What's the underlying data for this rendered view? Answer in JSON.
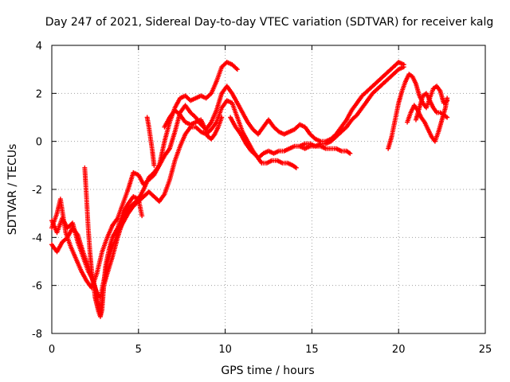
{
  "chart_data": {
    "type": "scatter",
    "title": "Day 247 of 2021, Sidereal Day-to-day VTEC variation (SDTVAR) for receiver kalg",
    "xlabel": "GPS time / hours",
    "ylabel": "SDTVAR / TECUs",
    "xlim": [
      0,
      25
    ],
    "ylim": [
      -8,
      4
    ],
    "x_ticks": [
      0,
      5,
      10,
      15,
      20,
      25
    ],
    "y_ticks": [
      -8,
      -6,
      -4,
      -2,
      0,
      2,
      4
    ],
    "x_tick_labels": [
      "0",
      "5",
      "10",
      "15",
      "20",
      "25"
    ],
    "y_tick_labels": [
      "-8",
      "-6",
      "-4",
      "-2",
      "0",
      "2",
      "4"
    ],
    "grid": true,
    "marker": "+",
    "color": "#ff0000",
    "series": [
      {
        "points": [
          [
            0.0,
            -3.3
          ],
          [
            0.3,
            -3.8
          ],
          [
            0.6,
            -3.2
          ],
          [
            0.9,
            -3.6
          ],
          [
            1.2,
            -3.4
          ],
          [
            1.5,
            -4.2
          ],
          [
            1.8,
            -4.8
          ],
          [
            2.1,
            -5.4
          ],
          [
            2.4,
            -5.8
          ],
          [
            2.6,
            -6.4
          ],
          [
            2.8,
            -7.2
          ],
          [
            3.0,
            -6.0
          ],
          [
            3.2,
            -5.5
          ],
          [
            3.5,
            -4.8
          ],
          [
            3.8,
            -4.0
          ],
          [
            4.1,
            -3.3
          ],
          [
            4.4,
            -2.8
          ],
          [
            4.7,
            -2.6
          ],
          [
            5.0,
            -2.4
          ],
          [
            5.3,
            -2.0
          ],
          [
            5.6,
            -1.5
          ],
          [
            5.9,
            -1.3
          ],
          [
            6.2,
            -1.0
          ],
          [
            6.5,
            -0.6
          ],
          [
            6.8,
            -0.3
          ],
          [
            7.1,
            0.4
          ],
          [
            7.4,
            1.2
          ],
          [
            7.7,
            1.5
          ],
          [
            8.0,
            1.2
          ],
          [
            8.3,
            1.0
          ],
          [
            8.6,
            0.7
          ],
          [
            8.9,
            0.5
          ],
          [
            9.2,
            0.8
          ],
          [
            9.5,
            1.3
          ],
          [
            9.8,
            2.0
          ],
          [
            10.1,
            2.3
          ],
          [
            10.4,
            2.0
          ],
          [
            10.7,
            1.6
          ],
          [
            11.0,
            1.2
          ],
          [
            11.3,
            0.8
          ],
          [
            11.6,
            0.5
          ],
          [
            11.9,
            0.3
          ],
          [
            12.2,
            0.6
          ],
          [
            12.5,
            0.9
          ],
          [
            12.8,
            0.6
          ],
          [
            13.1,
            0.4
          ],
          [
            13.4,
            0.3
          ],
          [
            13.7,
            0.4
          ],
          [
            14.0,
            0.5
          ],
          [
            14.3,
            0.7
          ],
          [
            14.6,
            0.6
          ],
          [
            14.9,
            0.3
          ],
          [
            15.2,
            0.1
          ],
          [
            15.5,
            0.0
          ],
          [
            15.8,
            0.0
          ],
          [
            16.1,
            0.1
          ],
          [
            16.4,
            0.3
          ],
          [
            16.7,
            0.6
          ],
          [
            17.0,
            0.9
          ],
          [
            17.3,
            1.3
          ],
          [
            17.6,
            1.6
          ],
          [
            17.9,
            1.9
          ],
          [
            18.2,
            2.1
          ],
          [
            18.5,
            2.3
          ],
          [
            18.8,
            2.5
          ],
          [
            19.1,
            2.7
          ],
          [
            19.4,
            2.9
          ],
          [
            19.7,
            3.1
          ],
          [
            20.0,
            3.3
          ],
          [
            20.3,
            3.2
          ]
        ]
      },
      {
        "points": [
          [
            0.0,
            -4.3
          ],
          [
            0.3,
            -4.6
          ],
          [
            0.6,
            -4.2
          ],
          [
            0.9,
            -4.0
          ],
          [
            1.2,
            -3.6
          ],
          [
            1.5,
            -3.9
          ],
          [
            1.8,
            -4.6
          ],
          [
            2.1,
            -5.2
          ],
          [
            2.4,
            -5.9
          ],
          [
            2.6,
            -6.3
          ],
          [
            2.8,
            -6.5
          ],
          [
            3.0,
            -5.8
          ],
          [
            3.2,
            -5.0
          ],
          [
            3.5,
            -4.4
          ],
          [
            3.8,
            -3.8
          ],
          [
            4.1,
            -3.4
          ],
          [
            4.4,
            -3.0
          ],
          [
            4.7,
            -2.7
          ],
          [
            5.0,
            -2.5
          ],
          [
            5.3,
            -2.3
          ],
          [
            5.6,
            -2.1
          ],
          [
            5.9,
            -2.3
          ],
          [
            6.2,
            -2.5
          ],
          [
            6.5,
            -2.2
          ],
          [
            6.8,
            -1.6
          ],
          [
            7.1,
            -0.8
          ],
          [
            7.4,
            -0.2
          ],
          [
            7.7,
            0.3
          ],
          [
            8.0,
            0.6
          ],
          [
            8.3,
            0.6
          ],
          [
            8.6,
            0.4
          ],
          [
            8.9,
            0.3
          ],
          [
            9.2,
            0.5
          ],
          [
            9.5,
            0.8
          ],
          [
            9.8,
            1.4
          ],
          [
            10.1,
            1.7
          ],
          [
            10.4,
            1.6
          ],
          [
            10.7,
            1.0
          ],
          [
            11.0,
            0.4
          ],
          [
            11.3,
            0.0
          ],
          [
            11.6,
            -0.4
          ],
          [
            11.9,
            -0.7
          ],
          [
            12.2,
            -0.5
          ],
          [
            12.5,
            -0.4
          ],
          [
            12.8,
            -0.5
          ],
          [
            13.1,
            -0.4
          ],
          [
            13.4,
            -0.4
          ],
          [
            13.7,
            -0.3
          ],
          [
            14.0,
            -0.2
          ],
          [
            14.3,
            -0.2
          ],
          [
            14.6,
            -0.3
          ],
          [
            14.9,
            -0.2
          ],
          [
            15.2,
            -0.2
          ],
          [
            15.5,
            -0.1
          ],
          [
            15.8,
            -0.1
          ],
          [
            16.1,
            0.0
          ],
          [
            16.4,
            0.2
          ],
          [
            16.7,
            0.4
          ],
          [
            17.0,
            0.6
          ],
          [
            17.3,
            0.9
          ],
          [
            17.6,
            1.1
          ],
          [
            17.9,
            1.4
          ],
          [
            18.2,
            1.7
          ],
          [
            18.5,
            2.0
          ],
          [
            18.8,
            2.2
          ],
          [
            19.1,
            2.4
          ],
          [
            19.4,
            2.6
          ],
          [
            19.7,
            2.8
          ],
          [
            20.0,
            3.0
          ],
          [
            20.3,
            3.1
          ]
        ]
      },
      {
        "points": [
          [
            0.0,
            -3.6
          ],
          [
            0.3,
            -3.0
          ],
          [
            0.5,
            -2.4
          ],
          [
            0.8,
            -3.8
          ],
          [
            1.1,
            -4.4
          ],
          [
            1.4,
            -4.9
          ],
          [
            1.7,
            -5.4
          ],
          [
            2.0,
            -5.8
          ],
          [
            2.3,
            -6.1
          ],
          [
            2.6,
            -5.5
          ],
          [
            2.9,
            -4.6
          ],
          [
            3.2,
            -4.0
          ],
          [
            3.5,
            -3.5
          ],
          [
            3.8,
            -3.2
          ],
          [
            4.1,
            -2.6
          ],
          [
            4.4,
            -2.0
          ],
          [
            4.7,
            -1.3
          ],
          [
            5.0,
            -1.4
          ],
          [
            5.3,
            -1.8
          ],
          [
            5.6,
            -1.6
          ],
          [
            5.9,
            -1.4
          ],
          [
            6.2,
            -1.0
          ],
          [
            6.5,
            0.0
          ],
          [
            6.8,
            0.8
          ],
          [
            7.1,
            1.4
          ],
          [
            7.4,
            1.8
          ],
          [
            7.7,
            1.9
          ],
          [
            8.0,
            1.7
          ],
          [
            8.3,
            1.8
          ],
          [
            8.6,
            1.9
          ],
          [
            8.9,
            1.8
          ],
          [
            9.2,
            2.0
          ],
          [
            9.5,
            2.5
          ],
          [
            9.8,
            3.1
          ],
          [
            10.1,
            3.3
          ],
          [
            10.4,
            3.2
          ],
          [
            10.7,
            3.0
          ]
        ]
      },
      {
        "points": [
          [
            1.9,
            -1.1
          ],
          [
            2.0,
            -2.3
          ],
          [
            2.1,
            -3.6
          ],
          [
            2.2,
            -4.6
          ],
          [
            2.3,
            -5.4
          ],
          [
            2.4,
            -5.9
          ],
          [
            2.5,
            -6.5
          ],
          [
            2.6,
            -6.8
          ],
          [
            2.7,
            -7.1
          ],
          [
            2.8,
            -7.3
          ],
          [
            2.9,
            -7.0
          ],
          [
            3.0,
            -6.0
          ],
          [
            3.1,
            -5.2
          ],
          [
            3.3,
            -4.5
          ],
          [
            3.5,
            -4.0
          ],
          [
            3.8,
            -3.6
          ],
          [
            4.1,
            -3.0
          ],
          [
            4.4,
            -2.6
          ],
          [
            4.7,
            -2.3
          ],
          [
            5.0,
            -2.4
          ],
          [
            5.2,
            -3.1
          ]
        ]
      },
      {
        "points": [
          [
            5.5,
            1.0
          ],
          [
            5.6,
            0.6
          ],
          [
            5.7,
            0.1
          ],
          [
            5.8,
            -0.4
          ],
          [
            5.9,
            -1.0
          ]
        ]
      },
      {
        "points": [
          [
            6.5,
            0.6
          ],
          [
            6.8,
            1.0
          ],
          [
            7.1,
            1.3
          ],
          [
            7.4,
            1.1
          ],
          [
            7.7,
            0.8
          ],
          [
            8.0,
            0.7
          ],
          [
            8.3,
            0.8
          ],
          [
            8.6,
            0.9
          ],
          [
            8.8,
            0.6
          ],
          [
            9.0,
            0.2
          ],
          [
            9.2,
            0.1
          ],
          [
            9.4,
            0.3
          ],
          [
            9.6,
            0.6
          ],
          [
            9.8,
            1.0
          ]
        ]
      },
      {
        "points": [
          [
            10.3,
            1.0
          ],
          [
            10.6,
            0.6
          ],
          [
            10.9,
            0.3
          ],
          [
            11.2,
            -0.1
          ],
          [
            11.5,
            -0.4
          ],
          [
            11.8,
            -0.6
          ],
          [
            12.1,
            -0.9
          ],
          [
            12.4,
            -0.9
          ],
          [
            12.7,
            -0.8
          ],
          [
            13.0,
            -0.8
          ],
          [
            13.3,
            -0.9
          ],
          [
            13.6,
            -0.9
          ],
          [
            13.9,
            -1.0
          ],
          [
            14.1,
            -1.1
          ]
        ]
      },
      {
        "points": [
          [
            14.3,
            -0.2
          ],
          [
            14.6,
            -0.1
          ],
          [
            14.9,
            -0.1
          ],
          [
            15.2,
            -0.2
          ],
          [
            15.5,
            -0.2
          ],
          [
            15.8,
            -0.3
          ],
          [
            16.1,
            -0.3
          ],
          [
            16.4,
            -0.3
          ],
          [
            16.7,
            -0.4
          ],
          [
            17.0,
            -0.4
          ],
          [
            17.2,
            -0.5
          ]
        ]
      },
      {
        "points": [
          [
            19.4,
            -0.3
          ],
          [
            19.6,
            0.2
          ],
          [
            19.8,
            0.9
          ],
          [
            20.0,
            1.6
          ],
          [
            20.2,
            2.1
          ],
          [
            20.4,
            2.5
          ],
          [
            20.6,
            2.8
          ],
          [
            20.8,
            2.7
          ],
          [
            21.0,
            2.4
          ],
          [
            21.2,
            1.9
          ],
          [
            21.4,
            1.6
          ],
          [
            21.6,
            1.4
          ],
          [
            21.8,
            1.8
          ],
          [
            22.0,
            2.2
          ],
          [
            22.2,
            2.3
          ],
          [
            22.4,
            2.1
          ],
          [
            22.6,
            1.6
          ],
          [
            22.8,
            1.7
          ]
        ]
      },
      {
        "points": [
          [
            20.5,
            0.8
          ],
          [
            20.7,
            1.2
          ],
          [
            20.9,
            1.5
          ],
          [
            21.1,
            1.3
          ],
          [
            21.3,
            1.0
          ],
          [
            21.5,
            0.8
          ],
          [
            21.7,
            0.5
          ],
          [
            21.9,
            0.2
          ],
          [
            22.1,
            0.0
          ],
          [
            22.3,
            0.4
          ],
          [
            22.5,
            0.9
          ],
          [
            22.7,
            1.4
          ],
          [
            22.8,
            1.8
          ]
        ]
      },
      {
        "points": [
          [
            21.0,
            0.9
          ],
          [
            21.2,
            1.4
          ],
          [
            21.4,
            1.9
          ],
          [
            21.6,
            2.0
          ],
          [
            21.8,
            1.7
          ],
          [
            22.0,
            1.4
          ],
          [
            22.2,
            1.2
          ],
          [
            22.4,
            1.2
          ],
          [
            22.6,
            1.1
          ],
          [
            22.8,
            1.0
          ]
        ]
      }
    ]
  }
}
